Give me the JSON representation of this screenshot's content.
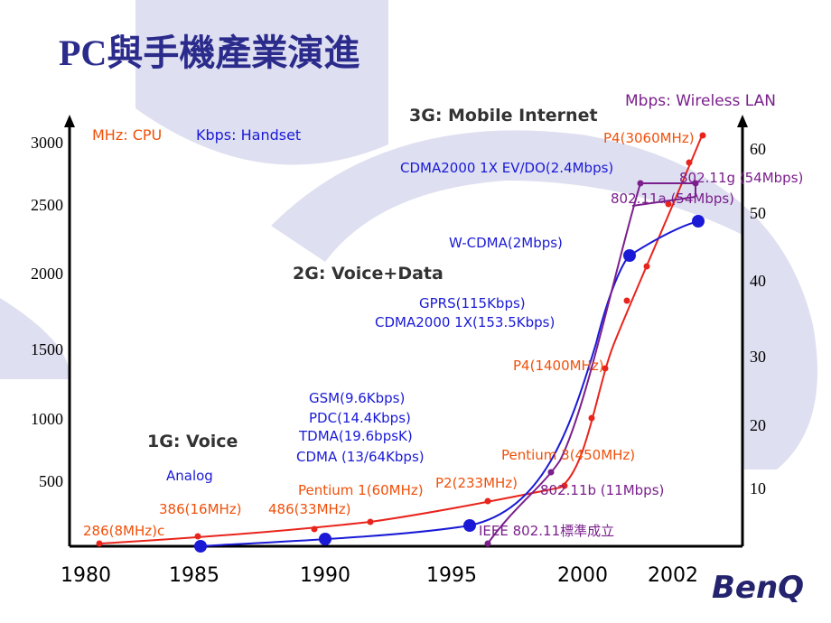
{
  "title": "PC與手機產業演進",
  "left_axis": {
    "ticks": [
      3000,
      2500,
      2000,
      1500,
      1000,
      500
    ]
  },
  "right_axis": {
    "ticks": [
      60,
      50,
      40,
      30,
      20,
      10
    ]
  },
  "x_axis": {
    "ticks": [
      1980,
      1985,
      1990,
      1995,
      2000,
      2002
    ]
  },
  "labels": [
    "3G: Mobile Internet",
    "Mbps: Wireless LAN",
    "MHz: CPU",
    "Kbps: Handset",
    "P4(3060MHz)",
    "CDMA2000 1X EV/DO(2.4Mbps)",
    "802.11g (54Mbps)",
    "802.11a (54Mbps)",
    "W-CDMA(2Mbps)",
    "2G: Voice+Data",
    "GPRS(115Kbps)",
    "CDMA2000 1X(153.5Kbps)",
    "P4(1400MHz)",
    "GSM(9.6Kbps)",
    "PDC(14.4Kbps)",
    "TDMA(19.6bpsK)",
    "CDMA (13/64Kbps)",
    "1G: Voice",
    "Pentium 3(450MHz)",
    "Analog",
    "P2(233MHz)",
    "Pentium 1(60MHz)",
    "802.11b (11Mbps)",
    "386(16MHz)",
    "486(33MHz)",
    "286(8MHz)c",
    "IEEE 802.11標準成立"
  ],
  "logo": "BenQ"
}
